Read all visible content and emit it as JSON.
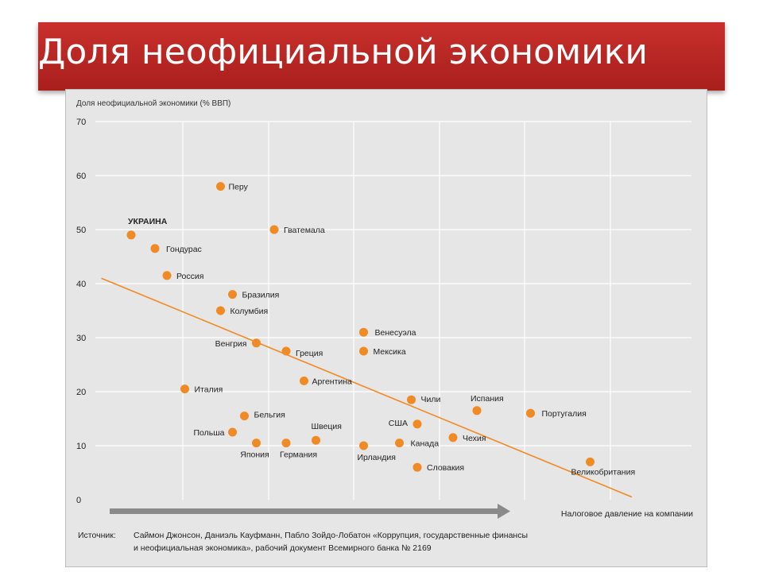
{
  "slide": {
    "title": "Доля неофициальной экономики",
    "accent_color": "#b52420"
  },
  "chart_data": {
    "type": "scatter",
    "ylabel": "Доля неофициальной экономики (% ВВП)",
    "xlabel": "Налоговое давление на компании",
    "ylim": [
      0,
      70
    ],
    "yticks": [
      "70",
      "60",
      "50",
      "40",
      "30",
      "20",
      "10",
      "0"
    ],
    "grid": true,
    "marker_color": "#f08a24",
    "trendline_color": "#f08a24",
    "points": [
      {
        "label": "Перу",
        "x": 21,
        "y": 58
      },
      {
        "label": "УКРАИНА",
        "x": 6,
        "y": 49
      },
      {
        "label": "Гватемала",
        "x": 30,
        "y": 50
      },
      {
        "label": "Гондурас",
        "x": 10,
        "y": 46.5
      },
      {
        "label": "Россия",
        "x": 12,
        "y": 41.5
      },
      {
        "label": "Бразилия",
        "x": 23,
        "y": 38
      },
      {
        "label": "Колумбия",
        "x": 21,
        "y": 35
      },
      {
        "label": "Венесуэла",
        "x": 45,
        "y": 31
      },
      {
        "label": "Венгрия",
        "x": 27,
        "y": 29
      },
      {
        "label": "Греция",
        "x": 32,
        "y": 27.5
      },
      {
        "label": "Мексика",
        "x": 45,
        "y": 27.5
      },
      {
        "label": "Аргентина",
        "x": 35,
        "y": 22
      },
      {
        "label": "Италия",
        "x": 15,
        "y": 20.5
      },
      {
        "label": "Чили",
        "x": 53,
        "y": 18.5
      },
      {
        "label": "Испания",
        "x": 64,
        "y": 16.5
      },
      {
        "label": "Португалия",
        "x": 73,
        "y": 16
      },
      {
        "label": "Бельгия",
        "x": 25,
        "y": 15.5
      },
      {
        "label": "США",
        "x": 54,
        "y": 14
      },
      {
        "label": "Польша",
        "x": 23,
        "y": 12.5
      },
      {
        "label": "Швеция",
        "x": 37,
        "y": 11
      },
      {
        "label": "Чехия",
        "x": 60,
        "y": 11.5
      },
      {
        "label": "Япония",
        "x": 27,
        "y": 10.5
      },
      {
        "label": "Германия",
        "x": 32,
        "y": 10.5
      },
      {
        "label": "Ирландия",
        "x": 45,
        "y": 10
      },
      {
        "label": "Канада",
        "x": 51,
        "y": 10.5
      },
      {
        "label": "Словакия",
        "x": 54,
        "y": 6
      },
      {
        "label": "Великобритания",
        "x": 83,
        "y": 7
      }
    ]
  },
  "source": {
    "key": "Источник:",
    "line1": "Саймон Джонсон, Даниэль Кауфманн, Пабло Зойдо-Лобатон «Коррупция, государственные финансы",
    "line2": "и неофициальная экономика», рабочий документ Всемирного банка № 2169"
  }
}
